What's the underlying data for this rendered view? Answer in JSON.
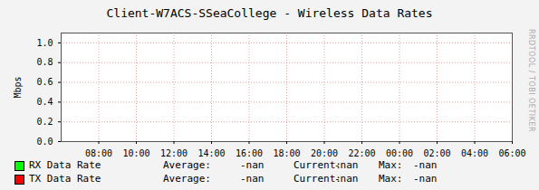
{
  "chart_data": {
    "type": "line",
    "title": "Client-W7ACS-SSeaCollege - Wireless Data Rates",
    "y_label": "Mbps",
    "side_text": "RRDTOOL / TOBI OETIKER",
    "x": [],
    "xlim": [
      6,
      30
    ],
    "xticks": [
      {
        "value": 8,
        "label": "08:00"
      },
      {
        "value": 10,
        "label": "10:00"
      },
      {
        "value": 12,
        "label": "12:00"
      },
      {
        "value": 14,
        "label": "14:00"
      },
      {
        "value": 16,
        "label": "16:00"
      },
      {
        "value": 18,
        "label": "18:00"
      },
      {
        "value": 20,
        "label": "20:00"
      },
      {
        "value": 22,
        "label": "22:00"
      },
      {
        "value": 24,
        "label": "00:00"
      },
      {
        "value": 26,
        "label": "02:00"
      },
      {
        "value": 28,
        "label": "04:00"
      },
      {
        "value": 30,
        "label": "06:00"
      }
    ],
    "ylim": [
      0,
      1.1
    ],
    "yticks": [
      {
        "value": 0,
        "label": "0.0"
      },
      0.2,
      0.4,
      0.6,
      0.8,
      {
        "value": 1,
        "label": "1.0"
      }
    ],
    "grid": true,
    "legend": "bottom-left",
    "stat_labels": [
      "Average:",
      "Current:",
      "Max:"
    ],
    "series": [
      {
        "name": "RX Data Rate",
        "color": "#00ff00",
        "values": [],
        "stats": [
          "-nan",
          "-nan",
          "-nan"
        ]
      },
      {
        "name": "TX Data Rate",
        "color": "#ff0000",
        "values": [],
        "stats": [
          "-nan",
          "-nan",
          "-nan"
        ]
      }
    ]
  }
}
